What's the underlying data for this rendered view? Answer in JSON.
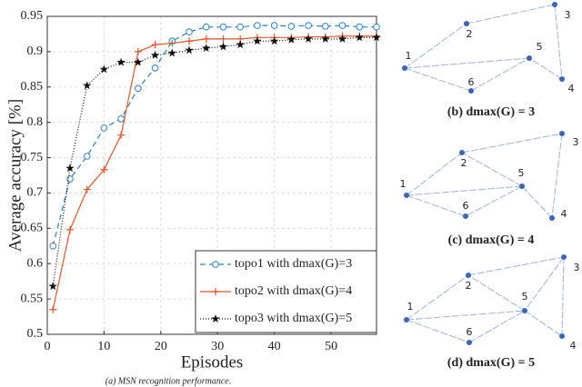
{
  "chart_data": {
    "type": "line",
    "xlabel": "Episodes",
    "ylabel": "Average accuracy [%]",
    "caption": "(a) MSN recognition performance.",
    "xlim": [
      0,
      58
    ],
    "xticks": [
      0,
      10,
      20,
      30,
      40,
      50
    ],
    "ylim": [
      0.5,
      0.95
    ],
    "yticks": [
      0.5,
      0.55,
      0.6,
      0.65,
      0.7,
      0.75,
      0.8,
      0.85,
      0.9,
      0.95
    ],
    "grid": true,
    "legend": "lower right",
    "x": [
      1,
      4,
      7,
      10,
      13,
      16,
      19,
      22,
      25,
      28,
      31,
      34,
      37,
      40,
      43,
      46,
      49,
      52,
      55,
      58
    ],
    "series": [
      {
        "name": "topo1 with dmax(G)=3",
        "color": "#2a7fc4",
        "marker": "circle",
        "dash": "6,4",
        "values": [
          0.625,
          0.72,
          0.752,
          0.792,
          0.805,
          0.848,
          0.877,
          0.915,
          0.928,
          0.935,
          0.935,
          0.935,
          0.937,
          0.937,
          0.936,
          0.937,
          0.936,
          0.937,
          0.935,
          0.935
        ]
      },
      {
        "name": "topo2 with dmax(G)=4",
        "color": "#e0552a",
        "marker": "plus",
        "dash": "",
        "values": [
          0.535,
          0.648,
          0.705,
          0.733,
          0.782,
          0.9,
          0.91,
          0.912,
          0.915,
          0.918,
          0.918,
          0.918,
          0.92,
          0.92,
          0.92,
          0.921,
          0.921,
          0.922,
          0.922,
          0.922
        ]
      },
      {
        "name": "topo3 with dmax(G)=5",
        "color": "#111111",
        "marker": "star",
        "dash": "1,2",
        "values": [
          0.568,
          0.735,
          0.852,
          0.875,
          0.885,
          0.885,
          0.895,
          0.898,
          0.902,
          0.905,
          0.907,
          0.91,
          0.915,
          0.915,
          0.917,
          0.918,
          0.918,
          0.918,
          0.92,
          0.92
        ]
      }
    ]
  },
  "diagrams": [
    {
      "caption": "(b) dmax(G) = 3",
      "nodes": [
        "1",
        "2",
        "3",
        "4",
        "5",
        "6"
      ]
    },
    {
      "caption": "(c) dmax(G) = 4",
      "nodes": [
        "1",
        "2",
        "3",
        "4",
        "5",
        "6"
      ]
    },
    {
      "caption": "(d) dmax(G) = 5",
      "nodes": [
        "1",
        "2",
        "3",
        "4",
        "5",
        "6"
      ]
    }
  ]
}
